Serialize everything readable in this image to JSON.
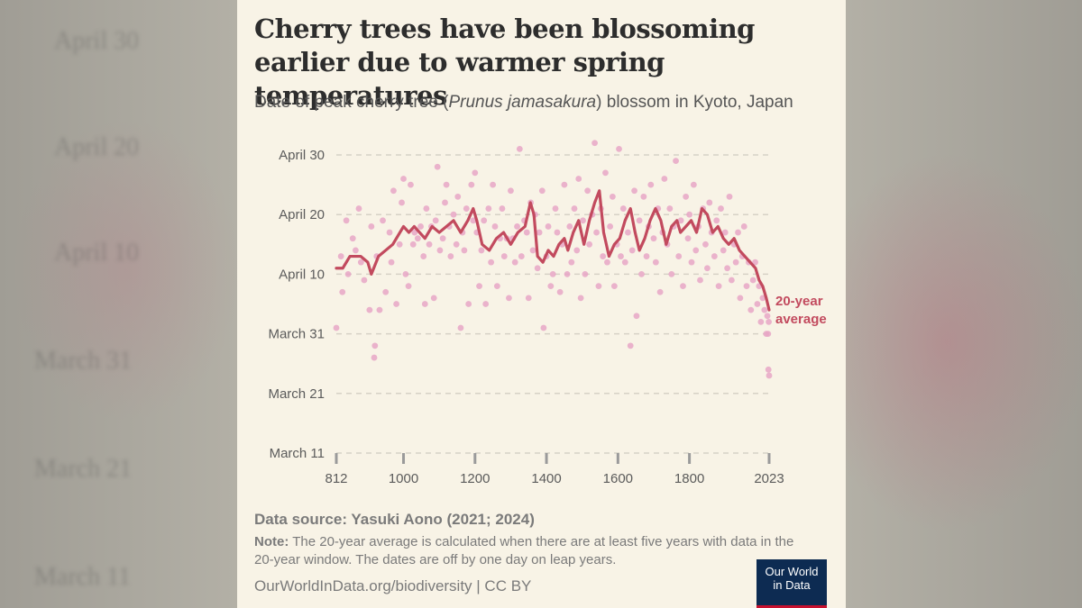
{
  "title": "Cherry trees have been blossoming earlier due to warmer spring temperatures",
  "subtitle": {
    "prefix": "Date of peak cherry tree (",
    "species": "Prunus jamasakura",
    "suffix": ") blossom in Kyoto, Japan"
  },
  "source": "Data source: Yasuki Aono (2021; 2024)",
  "note": {
    "label": "Note:",
    "text": " The 20-year average is calculated when there are at least five years with data in the 20-year window. The dates are off by one day on leap years."
  },
  "url": "OurWorldInData.org/biodiversity | CC BY",
  "logo": {
    "line1": "Our World",
    "line2": "in Data"
  },
  "colors": {
    "points": "#e8a6c6",
    "line": "#c24a5e",
    "background": "#f8f3e6"
  },
  "chart_data": {
    "type": "scatter",
    "x_ticks": [
      812,
      1000,
      1200,
      1400,
      1600,
      1800,
      2023
    ],
    "y_ticks": [
      {
        "day": 71,
        "label": "March 11"
      },
      {
        "day": 81,
        "label": "March 21"
      },
      {
        "day": 91,
        "label": "March 31"
      },
      {
        "day": 101,
        "label": "April 10"
      },
      {
        "day": 111,
        "label": "April 20"
      },
      {
        "day": 121,
        "label": "April 30"
      }
    ],
    "xlim": [
      812,
      2023
    ],
    "ylim": [
      71,
      121
    ],
    "grid": true,
    "series": [
      {
        "kind": "points",
        "points": [
          [
            812,
            92
          ],
          [
            825,
            104
          ],
          [
            829,
            98
          ],
          [
            840,
            110
          ],
          [
            845,
            101
          ],
          [
            858,
            107
          ],
          [
            866,
            105
          ],
          [
            875,
            112
          ],
          [
            881,
            103
          ],
          [
            890,
            100
          ],
          [
            905,
            95
          ],
          [
            910,
            109
          ],
          [
            918,
            87
          ],
          [
            920,
            89
          ],
          [
            925,
            104
          ],
          [
            933,
            95
          ],
          [
            942,
            110
          ],
          [
            950,
            98
          ],
          [
            961,
            108
          ],
          [
            966,
            103
          ],
          [
            972,
            115
          ],
          [
            980,
            96
          ],
          [
            989,
            106
          ],
          [
            995,
            113
          ],
          [
            1000,
            117
          ],
          [
            1006,
            101
          ],
          [
            1014,
            99
          ],
          [
            1020,
            116
          ],
          [
            1027,
            106
          ],
          [
            1031,
            108
          ],
          [
            1040,
            107
          ],
          [
            1048,
            109
          ],
          [
            1056,
            104
          ],
          [
            1060,
            96
          ],
          [
            1064,
            112
          ],
          [
            1072,
            106
          ],
          [
            1078,
            109
          ],
          [
            1085,
            97
          ],
          [
            1090,
            110
          ],
          [
            1095,
            119
          ],
          [
            1102,
            105
          ],
          [
            1110,
            107
          ],
          [
            1116,
            113
          ],
          [
            1120,
            116
          ],
          [
            1128,
            109
          ],
          [
            1132,
            104
          ],
          [
            1140,
            111
          ],
          [
            1148,
            106
          ],
          [
            1152,
            114
          ],
          [
            1160,
            92
          ],
          [
            1165,
            108
          ],
          [
            1170,
            105
          ],
          [
            1176,
            112
          ],
          [
            1182,
            96
          ],
          [
            1190,
            116
          ],
          [
            1195,
            110
          ],
          [
            1200,
            118
          ],
          [
            1205,
            108
          ],
          [
            1212,
            99
          ],
          [
            1218,
            105
          ],
          [
            1225,
            110
          ],
          [
            1230,
            96
          ],
          [
            1238,
            112
          ],
          [
            1245,
            103
          ],
          [
            1250,
            116
          ],
          [
            1256,
            109
          ],
          [
            1262,
            99
          ],
          [
            1270,
            107
          ],
          [
            1276,
            112
          ],
          [
            1282,
            104
          ],
          [
            1289,
            107
          ],
          [
            1295,
            97
          ],
          [
            1300,
            115
          ],
          [
            1306,
            107
          ],
          [
            1312,
            103
          ],
          [
            1318,
            109
          ],
          [
            1325,
            122
          ],
          [
            1330,
            104
          ],
          [
            1338,
            110
          ],
          [
            1345,
            108
          ],
          [
            1350,
            97
          ],
          [
            1356,
            113
          ],
          [
            1362,
            105
          ],
          [
            1368,
            111
          ],
          [
            1375,
            102
          ],
          [
            1380,
            108
          ],
          [
            1388,
            115
          ],
          [
            1392,
            92
          ],
          [
            1400,
            104
          ],
          [
            1405,
            109
          ],
          [
            1412,
            99
          ],
          [
            1418,
            101
          ],
          [
            1425,
            112
          ],
          [
            1430,
            108
          ],
          [
            1438,
            98
          ],
          [
            1444,
            106
          ],
          [
            1450,
            116
          ],
          [
            1458,
            101
          ],
          [
            1465,
            109
          ],
          [
            1470,
            103
          ],
          [
            1478,
            112
          ],
          [
            1485,
            105
          ],
          [
            1490,
            117
          ],
          [
            1496,
            97
          ],
          [
            1502,
            110
          ],
          [
            1508,
            101
          ],
          [
            1515,
            115
          ],
          [
            1520,
            106
          ],
          [
            1528,
            111
          ],
          [
            1535,
            123
          ],
          [
            1540,
            108
          ],
          [
            1546,
            99
          ],
          [
            1552,
            112
          ],
          [
            1558,
            104
          ],
          [
            1565,
            118
          ],
          [
            1570,
            103
          ],
          [
            1578,
            109
          ],
          [
            1585,
            114
          ],
          [
            1590,
            99
          ],
          [
            1597,
            106
          ],
          [
            1603,
            122
          ],
          [
            1608,
            104
          ],
          [
            1615,
            112
          ],
          [
            1620,
            103
          ],
          [
            1628,
            108
          ],
          [
            1635,
            89
          ],
          [
            1640,
            105
          ],
          [
            1646,
            115
          ],
          [
            1652,
            94
          ],
          [
            1660,
            110
          ],
          [
            1666,
            101
          ],
          [
            1672,
            114
          ],
          [
            1680,
            104
          ],
          [
            1686,
            109
          ],
          [
            1692,
            116
          ],
          [
            1700,
            107
          ],
          [
            1706,
            103
          ],
          [
            1712,
            112
          ],
          [
            1718,
            98
          ],
          [
            1725,
            108
          ],
          [
            1730,
            117
          ],
          [
            1738,
            106
          ],
          [
            1745,
            112
          ],
          [
            1750,
            101
          ],
          [
            1756,
            109
          ],
          [
            1762,
            120
          ],
          [
            1770,
            104
          ],
          [
            1776,
            110
          ],
          [
            1782,
            99
          ],
          [
            1790,
            114
          ],
          [
            1796,
            107
          ],
          [
            1800,
            111
          ],
          [
            1806,
            103
          ],
          [
            1812,
            116
          ],
          [
            1818,
            105
          ],
          [
            1825,
            109
          ],
          [
            1830,
            100
          ],
          [
            1838,
            112
          ],
          [
            1845,
            106
          ],
          [
            1850,
            102
          ],
          [
            1856,
            113
          ],
          [
            1862,
            108
          ],
          [
            1870,
            104
          ],
          [
            1876,
            110
          ],
          [
            1882,
            99
          ],
          [
            1888,
            112
          ],
          [
            1895,
            105
          ],
          [
            1900,
            108
          ],
          [
            1906,
            102
          ],
          [
            1912,
            114
          ],
          [
            1918,
            100
          ],
          [
            1925,
            106
          ],
          [
            1930,
            103
          ],
          [
            1936,
            108
          ],
          [
            1942,
            97
          ],
          [
            1948,
            104
          ],
          [
            1953,
            109
          ],
          [
            1960,
            99
          ],
          [
            1966,
            103
          ],
          [
            1972,
            95
          ],
          [
            1978,
            100
          ],
          [
            1984,
            103
          ],
          [
            1990,
            96
          ],
          [
            1995,
            99
          ],
          [
            2000,
            93
          ],
          [
            2005,
            97
          ],
          [
            2010,
            95
          ],
          [
            2015,
            91
          ],
          [
            2018,
            94
          ],
          [
            2020,
            91
          ],
          [
            2021,
            85
          ],
          [
            2022,
            93
          ],
          [
            2023,
            84
          ]
        ]
      },
      {
        "name": "20-year average",
        "kind": "line",
        "points": [
          [
            812,
            102
          ],
          [
            830,
            102
          ],
          [
            850,
            104
          ],
          [
            880,
            104
          ],
          [
            900,
            103
          ],
          [
            910,
            101
          ],
          [
            930,
            104
          ],
          [
            950,
            105
          ],
          [
            970,
            106
          ],
          [
            980,
            107
          ],
          [
            990,
            108
          ],
          [
            1000,
            109
          ],
          [
            1015,
            108
          ],
          [
            1030,
            109
          ],
          [
            1045,
            108
          ],
          [
            1060,
            107
          ],
          [
            1080,
            109
          ],
          [
            1100,
            108
          ],
          [
            1120,
            109
          ],
          [
            1140,
            110
          ],
          [
            1160,
            108
          ],
          [
            1180,
            110
          ],
          [
            1195,
            112
          ],
          [
            1205,
            110
          ],
          [
            1220,
            106
          ],
          [
            1240,
            105
          ],
          [
            1260,
            107
          ],
          [
            1280,
            108
          ],
          [
            1300,
            106
          ],
          [
            1320,
            108
          ],
          [
            1340,
            109
          ],
          [
            1355,
            113
          ],
          [
            1365,
            111
          ],
          [
            1375,
            104
          ],
          [
            1390,
            103
          ],
          [
            1405,
            105
          ],
          [
            1420,
            104
          ],
          [
            1435,
            106
          ],
          [
            1450,
            107
          ],
          [
            1460,
            105
          ],
          [
            1475,
            108
          ],
          [
            1490,
            110
          ],
          [
            1505,
            106
          ],
          [
            1520,
            110
          ],
          [
            1535,
            113
          ],
          [
            1548,
            115
          ],
          [
            1560,
            108
          ],
          [
            1575,
            104
          ],
          [
            1590,
            106
          ],
          [
            1605,
            107
          ],
          [
            1620,
            110
          ],
          [
            1635,
            112
          ],
          [
            1648,
            108
          ],
          [
            1660,
            105
          ],
          [
            1675,
            107
          ],
          [
            1690,
            110
          ],
          [
            1705,
            112
          ],
          [
            1720,
            110
          ],
          [
            1735,
            106
          ],
          [
            1750,
            109
          ],
          [
            1765,
            110
          ],
          [
            1775,
            108
          ],
          [
            1790,
            109
          ],
          [
            1805,
            110
          ],
          [
            1820,
            108
          ],
          [
            1835,
            112
          ],
          [
            1850,
            111
          ],
          [
            1865,
            108
          ],
          [
            1880,
            109
          ],
          [
            1895,
            107
          ],
          [
            1910,
            106
          ],
          [
            1925,
            107
          ],
          [
            1940,
            105
          ],
          [
            1955,
            104
          ],
          [
            1970,
            103
          ],
          [
            1985,
            102
          ],
          [
            1995,
            100
          ],
          [
            2005,
            99
          ],
          [
            2015,
            97
          ],
          [
            2023,
            95
          ]
        ]
      }
    ],
    "annotation": {
      "series": "20-year average",
      "lines": [
        "20-year",
        "average"
      ]
    }
  }
}
